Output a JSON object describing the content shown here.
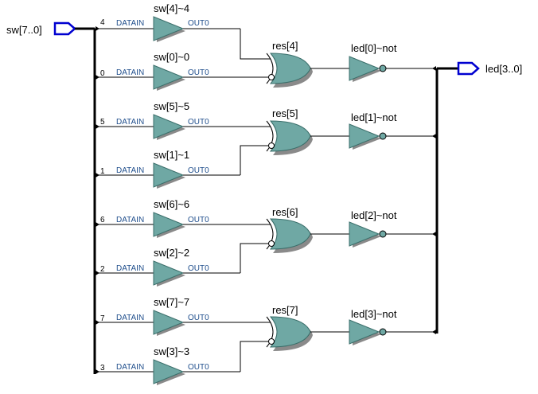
{
  "input_port": {
    "label": "sw[7..0]"
  },
  "output_port": {
    "label": "led[3..0]"
  },
  "buffers": [
    {
      "name": "sw[4]~4",
      "bit": "4",
      "in_pin": "DATAIN",
      "out_pin": "OUT0"
    },
    {
      "name": "sw[0]~0",
      "bit": "0",
      "in_pin": "DATAIN",
      "out_pin": "OUT0"
    },
    {
      "name": "sw[5]~5",
      "bit": "5",
      "in_pin": "DATAIN",
      "out_pin": "OUT0"
    },
    {
      "name": "sw[1]~1",
      "bit": "1",
      "in_pin": "DATAIN",
      "out_pin": "OUT0"
    },
    {
      "name": "sw[6]~6",
      "bit": "6",
      "in_pin": "DATAIN",
      "out_pin": "OUT0"
    },
    {
      "name": "sw[2]~2",
      "bit": "2",
      "in_pin": "DATAIN",
      "out_pin": "OUT0"
    },
    {
      "name": "sw[7]~7",
      "bit": "7",
      "in_pin": "DATAIN",
      "out_pin": "OUT0"
    },
    {
      "name": "sw[3]~3",
      "bit": "3",
      "in_pin": "DATAIN",
      "out_pin": "OUT0"
    }
  ],
  "xor_gates": [
    {
      "name": "res[4]"
    },
    {
      "name": "res[5]"
    },
    {
      "name": "res[6]"
    },
    {
      "name": "res[7]"
    }
  ],
  "inverters": [
    {
      "name": "led[0]~not"
    },
    {
      "name": "led[1]~not"
    },
    {
      "name": "led[2]~not"
    },
    {
      "name": "led[3]~not"
    }
  ],
  "colors": {
    "gate_fill": "#6fa8a4",
    "port_outline": "#0000d0",
    "pin_text": "#1f4e8c"
  }
}
